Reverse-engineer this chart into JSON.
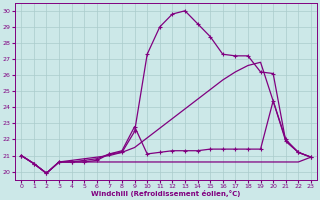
{
  "xlabel": "Windchill (Refroidissement éolien,°C)",
  "xlim": [
    -0.5,
    23.5
  ],
  "ylim": [
    19.5,
    30.5
  ],
  "xticks": [
    0,
    1,
    2,
    3,
    4,
    5,
    6,
    7,
    8,
    9,
    10,
    11,
    12,
    13,
    14,
    15,
    16,
    17,
    18,
    19,
    20,
    21,
    22,
    23
  ],
  "yticks": [
    20,
    21,
    22,
    23,
    24,
    25,
    26,
    27,
    28,
    29,
    30
  ],
  "bg_color": "#cce8e8",
  "line_color": "#800080",
  "grid_color": "#aacccc",
  "curves": [
    {
      "x": [
        0,
        1,
        2,
        3,
        4,
        5,
        6,
        7,
        8,
        9,
        10,
        11,
        12,
        13,
        14,
        15,
        16,
        17,
        18,
        19,
        20,
        21,
        22,
        23
      ],
      "y": [
        21.0,
        20.5,
        19.9,
        20.6,
        20.6,
        20.6,
        20.6,
        20.6,
        20.6,
        20.6,
        20.6,
        20.6,
        20.6,
        20.6,
        20.6,
        20.6,
        20.6,
        20.6,
        20.6,
        20.6,
        20.6,
        20.6,
        20.6,
        20.9
      ],
      "marker": null,
      "lw": 0.9
    },
    {
      "x": [
        0,
        1,
        2,
        3,
        4,
        5,
        6,
        7,
        8,
        9,
        10,
        11,
        12,
        13,
        14,
        15,
        16,
        17,
        18,
        19,
        20,
        21,
        22,
        23
      ],
      "y": [
        21.0,
        20.5,
        19.9,
        20.6,
        20.6,
        20.6,
        20.7,
        21.1,
        21.2,
        22.5,
        27.3,
        29.0,
        29.8,
        30.0,
        29.2,
        28.4,
        27.3,
        27.2,
        27.2,
        26.2,
        26.1,
        21.9,
        21.2,
        20.9
      ],
      "marker": "+",
      "lw": 0.9
    },
    {
      "x": [
        0,
        1,
        2,
        3,
        4,
        5,
        6,
        7,
        8,
        9,
        10,
        11,
        12,
        13,
        14,
        15,
        16,
        17,
        18,
        19,
        20,
        21,
        22,
        23
      ],
      "y": [
        21.0,
        20.5,
        19.9,
        20.6,
        20.7,
        20.8,
        20.9,
        21.0,
        21.2,
        21.5,
        22.1,
        22.7,
        23.3,
        23.9,
        24.5,
        25.1,
        25.7,
        26.2,
        26.6,
        26.8,
        24.4,
        21.9,
        21.2,
        20.9
      ],
      "marker": null,
      "lw": 0.9
    },
    {
      "x": [
        0,
        1,
        2,
        3,
        4,
        5,
        6,
        7,
        8,
        9,
        10,
        11,
        12,
        13,
        14,
        15,
        16,
        17,
        18,
        19,
        20,
        21,
        22,
        23
      ],
      "y": [
        21.0,
        20.5,
        19.9,
        20.6,
        20.6,
        20.7,
        20.8,
        21.1,
        21.3,
        22.8,
        21.1,
        21.2,
        21.3,
        21.3,
        21.3,
        21.4,
        21.4,
        21.4,
        21.4,
        21.4,
        24.4,
        22.0,
        21.2,
        20.9
      ],
      "marker": "+",
      "lw": 0.9
    }
  ]
}
